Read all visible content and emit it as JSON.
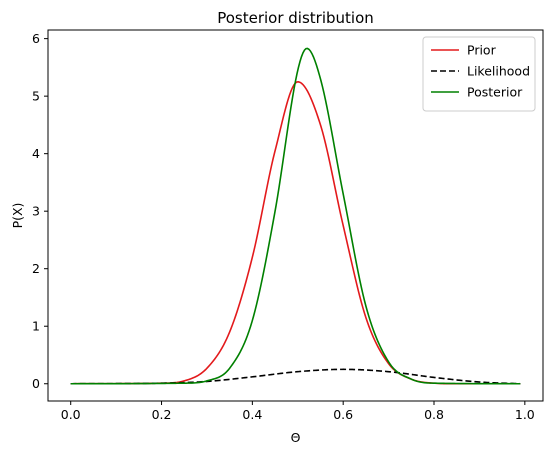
{
  "chart_data": {
    "type": "line",
    "title": "Posterior distribution",
    "xlabel": "Θ",
    "ylabel": "P(X)",
    "xlim": [
      -0.05,
      1.04
    ],
    "ylim": [
      -0.3,
      6.15
    ],
    "xticks": [
      0.0,
      0.2,
      0.4,
      0.6,
      0.8,
      1.0
    ],
    "xtick_labels": [
      "0.0",
      "0.2",
      "0.4",
      "0.6",
      "0.8",
      "1.0"
    ],
    "yticks": [
      0,
      1,
      2,
      3,
      4,
      5,
      6
    ],
    "ytick_labels": [
      "0",
      "1",
      "2",
      "3",
      "4",
      "5",
      "6"
    ],
    "grid": false,
    "legend_position": "top-right",
    "x_range": [
      0.0,
      0.99
    ],
    "series": [
      {
        "name": "Prior",
        "color": "#e31a1c",
        "style": "solid",
        "peak_x": 0.497,
        "peak_y": 5.26,
        "points": [
          [
            0.0,
            0.0
          ],
          [
            0.2,
            0.01
          ],
          [
            0.25,
            0.05
          ],
          [
            0.3,
            0.27
          ],
          [
            0.35,
            0.9
          ],
          [
            0.4,
            2.2
          ],
          [
            0.45,
            4.05
          ],
          [
            0.5,
            5.25
          ],
          [
            0.55,
            4.5
          ],
          [
            0.6,
            2.75
          ],
          [
            0.65,
            1.15
          ],
          [
            0.7,
            0.35
          ],
          [
            0.75,
            0.08
          ],
          [
            0.8,
            0.01
          ],
          [
            0.85,
            0.0
          ],
          [
            0.99,
            0.0
          ]
        ]
      },
      {
        "name": "Likelihood",
        "color": "#000000",
        "style": "dashed",
        "peak_x": 0.6,
        "peak_y": 0.25,
        "points": [
          [
            0.0,
            0.0
          ],
          [
            0.2,
            0.01
          ],
          [
            0.3,
            0.04
          ],
          [
            0.4,
            0.12
          ],
          [
            0.5,
            0.21
          ],
          [
            0.6,
            0.25
          ],
          [
            0.7,
            0.21
          ],
          [
            0.8,
            0.11
          ],
          [
            0.9,
            0.03
          ],
          [
            0.99,
            0.0
          ]
        ]
      },
      {
        "name": "Posterior",
        "color": "#008000",
        "style": "solid",
        "peak_x": 0.52,
        "peak_y": 5.83,
        "points": [
          [
            0.0,
            0.0
          ],
          [
            0.25,
            0.01
          ],
          [
            0.3,
            0.05
          ],
          [
            0.35,
            0.27
          ],
          [
            0.4,
            1.1
          ],
          [
            0.45,
            3.0
          ],
          [
            0.5,
            5.45
          ],
          [
            0.52,
            5.83
          ],
          [
            0.55,
            5.3
          ],
          [
            0.6,
            3.3
          ],
          [
            0.65,
            1.35
          ],
          [
            0.7,
            0.38
          ],
          [
            0.75,
            0.08
          ],
          [
            0.8,
            0.01
          ],
          [
            0.99,
            0.0
          ]
        ]
      }
    ]
  }
}
